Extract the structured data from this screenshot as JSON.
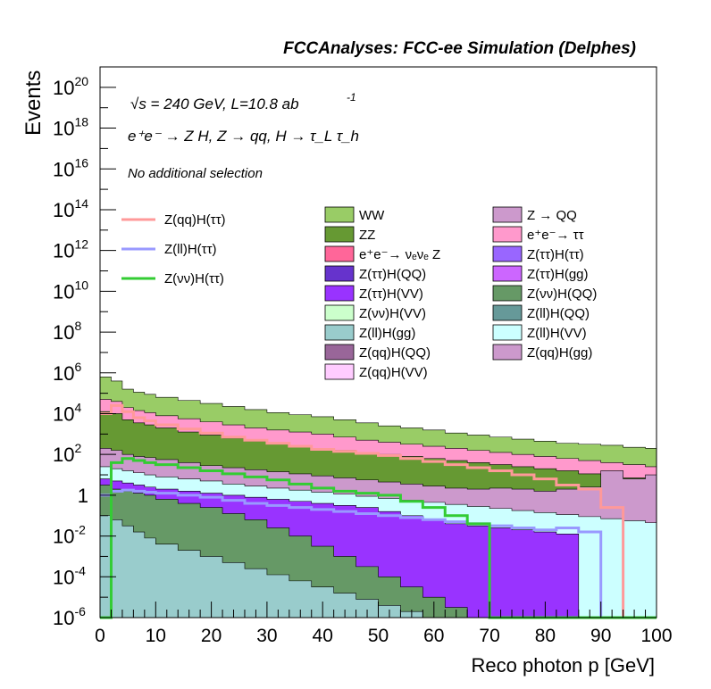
{
  "chart_data": {
    "type": "area",
    "title": "FCCAnalyses: FCC-ee Simulation (Delphes)",
    "xlabel": "Reco photon p [GeV]",
    "ylabel": "Events",
    "xlim": [
      0,
      100
    ],
    "ylim_exp": [
      -6,
      21
    ],
    "yscale": "log",
    "x_ticks": [
      0,
      10,
      20,
      30,
      40,
      50,
      60,
      70,
      80,
      90,
      100
    ],
    "y_ticks": [
      {
        "base": "10",
        "exp": "20",
        "v": 20
      },
      {
        "base": "10",
        "exp": "18",
        "v": 18
      },
      {
        "base": "10",
        "exp": "16",
        "v": 16
      },
      {
        "base": "10",
        "exp": "14",
        "v": 14
      },
      {
        "base": "10",
        "exp": "12",
        "v": 12
      },
      {
        "base": "10",
        "exp": "10",
        "v": 10
      },
      {
        "base": "10",
        "exp": "8",
        "v": 8
      },
      {
        "base": "10",
        "exp": "6",
        "v": 6
      },
      {
        "base": "10",
        "exp": "4",
        "v": 4
      },
      {
        "base": "10",
        "exp": "2",
        "v": 2
      },
      {
        "base": "1",
        "exp": "",
        "v": 0
      },
      {
        "base": "10",
        "exp": "-2",
        "v": -2
      },
      {
        "base": "10",
        "exp": "-4",
        "v": -4
      },
      {
        "base": "10",
        "exp": "-6",
        "v": -6
      }
    ],
    "annotations": {
      "energy": "√s = 240 GeV, L=10.8 ab",
      "energy_exp": "-1",
      "process": "e⁺e⁻ → Z H, Z → qq, H → τ_L τ_h",
      "selection": "No additional selection"
    },
    "stack_legend": [
      {
        "name": "WW",
        "color": "#99cc66"
      },
      {
        "name": "ZZ",
        "color": "#669933"
      },
      {
        "name": "e⁺e⁻→ νₑνₑ Z",
        "color": "#ff6699"
      },
      {
        "name": "Z(ττ)H(QQ)",
        "color": "#6633cc"
      },
      {
        "name": "Z(ττ)H(VV)",
        "color": "#9933ff"
      },
      {
        "name": "Z(νν)H(VV)",
        "color": "#ccffcc"
      },
      {
        "name": "Z(ll)H(gg)",
        "color": "#99cccc"
      },
      {
        "name": "Z(qq)H(QQ)",
        "color": "#996699"
      },
      {
        "name": "Z(qq)H(VV)",
        "color": "#ffccff"
      },
      {
        "name": "Z → QQ",
        "color": "#cc99cc"
      },
      {
        "name": "e⁺e⁻→ ττ",
        "color": "#ff99cc"
      },
      {
        "name": "Z(ττ)H(ττ)",
        "color": "#9966ff"
      },
      {
        "name": "Z(ττ)H(gg)",
        "color": "#cc66ff"
      },
      {
        "name": "Z(νν)H(QQ)",
        "color": "#669966"
      },
      {
        "name": "Z(ll)H(QQ)",
        "color": "#669999"
      },
      {
        "name": "Z(ll)H(VV)",
        "color": "#ccffff"
      },
      {
        "name": "Z(qq)H(gg)",
        "color": "#cc99cc"
      }
    ],
    "signal_legend": [
      {
        "name": "Z(qq)H(ττ)",
        "color": "#ff9999"
      },
      {
        "name": "Z(ll)H(ττ)",
        "color": "#9999ff"
      },
      {
        "name": "Z(νν)H(ττ)",
        "color": "#33cc33"
      }
    ],
    "bin_edges": [
      0,
      2,
      4,
      6,
      8,
      10,
      14,
      18,
      22,
      26,
      30,
      34,
      38,
      42,
      46,
      50,
      54,
      58,
      62,
      66,
      70,
      74,
      78,
      82,
      86,
      90,
      94,
      98,
      100
    ],
    "stack_bands": [
      {
        "name": "WW",
        "top": [
          5.8,
          5.6,
          5.2,
          5.05,
          4.95,
          4.8,
          4.65,
          4.5,
          4.35,
          4.2,
          4.05,
          3.95,
          3.85,
          3.7,
          3.55,
          3.4,
          3.3,
          3.2,
          3.05,
          2.95,
          2.85,
          2.75,
          2.65,
          2.55,
          2.5,
          2.45,
          2.35,
          2.3
        ]
      },
      {
        "name": "e⁺e⁻→ ττ",
        "top": [
          4.7,
          4.6,
          4.3,
          4.15,
          4.05,
          3.9,
          3.75,
          3.6,
          3.45,
          3.3,
          3.2,
          3.1,
          3.0,
          2.85,
          2.7,
          2.6,
          2.5,
          2.4,
          2.3,
          2.2,
          2.1,
          2.0,
          1.9,
          1.8,
          1.7,
          1.6,
          1.5,
          1.4
        ]
      },
      {
        "name": "ZZ",
        "top": [
          4.1,
          4.0,
          3.7,
          3.55,
          3.45,
          3.3,
          3.1,
          2.95,
          2.8,
          2.65,
          2.55,
          2.45,
          2.3,
          2.2,
          2.1,
          2.0,
          1.9,
          1.8,
          1.7,
          1.6,
          1.5,
          1.4,
          1.3,
          1.2,
          1.05,
          0.95,
          0.85,
          0.8
        ]
      },
      {
        "name": "Z → QQ",
        "top": [
          2.3,
          2.2,
          2.0,
          1.9,
          1.85,
          1.75,
          1.6,
          1.45,
          1.35,
          1.25,
          1.15,
          1.05,
          0.95,
          0.85,
          0.75,
          0.65,
          0.55,
          0.45,
          0.35,
          0.3,
          0.35,
          0.3,
          0.2,
          0.3,
          0.4,
          1.2,
          0.8,
          1.0
        ]
      },
      {
        "name": "Z(ll)H(VV)",
        "top": [
          1.4,
          1.3,
          1.2,
          1.1,
          1.0,
          0.9,
          0.8,
          0.7,
          0.55,
          0.45,
          0.35,
          0.25,
          0.15,
          0.05,
          -0.05,
          -0.15,
          -0.25,
          -0.35,
          -0.45,
          -0.55,
          -0.65,
          -0.75,
          -0.85,
          -0.95,
          -1.05,
          -1.15,
          -1.25,
          -1.35
        ]
      },
      {
        "name": "Z(ττ)H(VV)",
        "top": [
          0.8,
          0.7,
          0.6,
          0.5,
          0.4,
          0.3,
          0.2,
          0.1,
          0.0,
          -0.1,
          -0.2,
          -0.3,
          -0.4,
          -0.5,
          -0.6,
          -0.8,
          -1.0,
          -1.2,
          -1.4,
          -1.5,
          -1.6,
          -1.7,
          -1.8,
          -1.9,
          -6,
          -6,
          -6,
          -6
        ]
      },
      {
        "name": "Z(νν)H(QQ)",
        "top": [
          0.5,
          0.3,
          0.2,
          0.1,
          0.0,
          -0.2,
          -0.4,
          -0.6,
          -0.9,
          -1.2,
          -1.6,
          -2.0,
          -2.5,
          -3.0,
          -3.5,
          -4.0,
          -4.5,
          -5.0,
          -5.5,
          -6,
          -6,
          -6,
          -6,
          -6,
          -6,
          -6,
          -6,
          -6
        ]
      },
      {
        "name": "Z(ll)H(gg)",
        "top": [
          -1.0,
          -1.2,
          -1.5,
          -1.8,
          -2.1,
          -2.4,
          -2.7,
          -3.0,
          -3.3,
          -3.6,
          -3.9,
          -4.2,
          -4.5,
          -4.8,
          -5.1,
          -5.4,
          -5.7,
          -6,
          -6,
          -6,
          -6,
          -6,
          -6,
          -6,
          -6,
          -6,
          -6,
          -6
        ]
      }
    ],
    "signal_lines": [
      {
        "name": "Z(qq)H(ττ)",
        "values": [
          4.0,
          4.4,
          4.1,
          3.8,
          3.65,
          3.45,
          3.25,
          3.05,
          2.85,
          2.7,
          2.55,
          2.4,
          2.25,
          2.15,
          2.05,
          1.95,
          1.8,
          1.65,
          1.5,
          1.35,
          1.2,
          1.0,
          0.8,
          0.5,
          0.3,
          -0.6,
          -6,
          -6
        ]
      },
      {
        "name": "Z(ll)H(ττ)",
        "values": [
          0.0,
          0.2,
          0.25,
          0.2,
          0.15,
          0.1,
          0.0,
          -0.1,
          -0.25,
          -0.4,
          -0.5,
          -0.6,
          -0.7,
          -0.8,
          -0.9,
          -1.0,
          -1.1,
          -1.2,
          -1.3,
          -1.4,
          -1.5,
          -1.6,
          -1.7,
          -1.6,
          -1.8,
          -6,
          -6,
          -6
        ]
      },
      {
        "name": "Z(νν)H(ττ)",
        "values": [
          -6,
          1.6,
          1.8,
          1.7,
          1.6,
          1.5,
          1.35,
          1.2,
          1.05,
          0.9,
          0.75,
          0.55,
          0.35,
          0.2,
          0.1,
          0.0,
          -0.3,
          -0.6,
          -1.0,
          -1.4,
          -6,
          -6,
          -6,
          -6,
          -6,
          -6,
          -6,
          -6
        ]
      }
    ]
  }
}
